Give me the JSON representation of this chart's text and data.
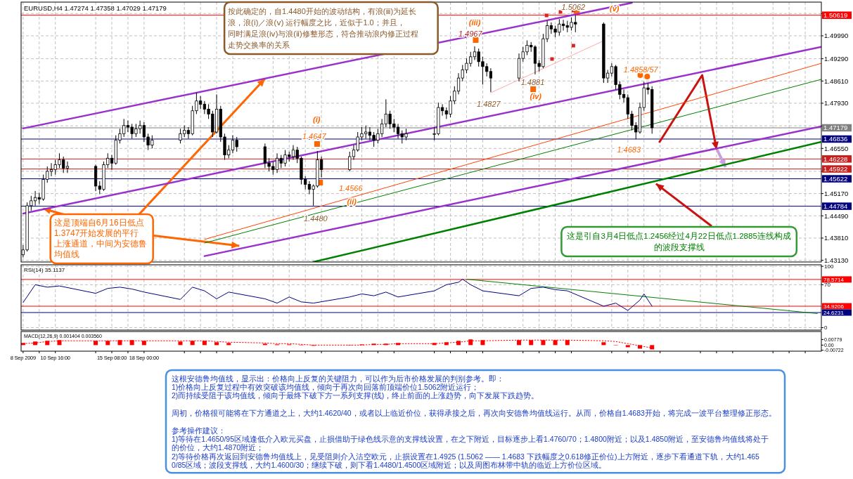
{
  "chart_data": [
    {
      "type": "candlestick",
      "title": "EURUSD,H4  1.47274 1.47358 1.47029 1.47179",
      "xlim": [
        "2009-09-07T20:00",
        "2009-11-13T00:00"
      ],
      "xticks": [
        {
          "value": "2009-09-08T00:00",
          "label": null
        },
        {
          "value": "2009-09-09T08:00",
          "label": null
        },
        {
          "value": "2009-09-10T16:00",
          "label": null
        },
        {
          "value": "2009-09-14T00:00",
          "label": null
        },
        {
          "value": "2009-09-15T08:00",
          "label": null
        },
        {
          "value": "2009-09-16T16:00",
          "label": null
        },
        {
          "value": "2009-09-18T00:00",
          "label": null
        },
        {
          "value": "2009-09-21T08:00",
          "label": null
        },
        {
          "value": "2009-09-22T16:00",
          "label": null
        },
        {
          "value": "2009-09-24T00:00",
          "label": null
        },
        {
          "value": "2009-09-25T08:00",
          "label": null
        },
        {
          "value": "2009-09-28T16:00",
          "label": null
        },
        {
          "value": "2009-09-30T00:00",
          "label": null
        },
        {
          "value": "2009-10-01T08:00",
          "label": null
        },
        {
          "value": "2009-10-02T16:00",
          "label": null
        },
        {
          "value": "2009-10-06T00:00",
          "label": null
        },
        {
          "value": "2009-10-07T08:00",
          "label": null
        },
        {
          "value": "2009-10-08T16:00",
          "label": null
        },
        {
          "value": "2009-10-12T00:00",
          "label": null
        },
        {
          "value": "2009-10-13T08:00",
          "label": null
        },
        {
          "value": "2009-10-14T16:00",
          "label": null
        },
        {
          "value": "2009-10-16T00:00",
          "label": null
        },
        {
          "value": "2009-10-19T08:00",
          "label": null
        },
        {
          "value": "2009-10-20T16:00",
          "label": null
        },
        {
          "value": "2009-10-22T00:00",
          "label": null
        },
        {
          "value": "2009-10-23T08:00",
          "label": null
        },
        {
          "value": "2009-10-26T16:00",
          "label": null
        },
        {
          "value": "2009-10-28T00:00",
          "label": null
        },
        {
          "value": "2009-10-29T08:00",
          "label": null
        },
        {
          "value": "2009-10-30T16:00",
          "label": null
        },
        {
          "value": "2009-11-03T00:00",
          "label": null
        },
        {
          "value": "2009-11-04T08:00",
          "label": null
        },
        {
          "value": "2009-11-05T16:00",
          "label": null
        },
        {
          "value": "2009-11-09T00:00",
          "label": null
        },
        {
          "value": "2009-11-10T08:00",
          "label": null
        },
        {
          "value": "2009-11-11T16:00",
          "label": null
        }
      ],
      "ylim": [
        1.4308,
        1.5102
      ],
      "yticks": [
        {
          "value": 1.4313,
          "label": "1.43130"
        },
        {
          "value": 1.4381,
          "label": "1.43810"
        },
        {
          "value": 1.4449,
          "label": "1.44490"
        },
        {
          "value": 1.4517,
          "label": "1.45170"
        },
        {
          "value": 1.4585,
          "label": null
        },
        {
          "value": 1.4655,
          "label": "1.46550"
        },
        {
          "value": 1.4724,
          "label": null
        },
        {
          "value": 1.4793,
          "label": "1.47930"
        },
        {
          "value": 1.4861,
          "label": "1.48610"
        },
        {
          "value": 1.4929,
          "label": "1.49290"
        },
        {
          "value": 1.4999,
          "label": "1.49990"
        },
        {
          "value": 1.5067,
          "label": null
        }
      ],
      "grid": true,
      "tick_labels": "y",
      "series": [
        {
          "color": "#000000",
          "x": [
            "2009-09-08T00:00",
            "2009-09-08T08:00",
            "2009-09-08T16:00",
            "2009-09-09T00:00",
            "2009-09-09T08:00",
            "2009-09-09T16:00",
            "2009-09-10T00:00",
            "2009-09-10T08:00",
            "2009-09-10T16:00",
            "2009-09-11T00:00",
            "2009-09-11T08:00",
            "2009-09-11T16:00",
            "2009-09-14T00:00",
            "2009-09-14T08:00",
            "2009-09-14T16:00",
            "2009-09-15T00:00",
            "2009-09-15T08:00",
            "2009-09-15T16:00",
            "2009-09-16T00:00",
            "2009-09-16T08:00",
            "2009-09-16T16:00",
            "2009-09-17T00:00",
            "2009-09-17T08:00",
            "2009-09-17T16:00",
            "2009-09-18T00:00",
            "2009-09-18T08:00",
            "2009-09-18T16:00",
            "2009-09-21T00:00",
            "2009-09-21T08:00",
            "2009-09-21T16:00",
            "2009-09-22T00:00",
            "2009-09-22T08:00",
            "2009-09-22T16:00",
            "2009-09-23T00:00",
            "2009-09-23T08:00",
            "2009-09-23T16:00",
            "2009-09-24T00:00",
            "2009-09-24T08:00",
            "2009-09-24T16:00",
            "2009-09-25T00:00",
            "2009-09-25T08:00",
            "2009-09-25T16:00",
            "2009-09-28T00:00",
            "2009-09-28T08:00",
            "2009-09-28T16:00",
            "2009-09-29T00:00",
            "2009-09-29T08:00",
            "2009-09-29T16:00",
            "2009-09-30T00:00",
            "2009-09-30T08:00",
            "2009-09-30T16:00",
            "2009-10-01T00:00",
            "2009-10-01T08:00",
            "2009-10-01T16:00",
            "2009-10-02T00:00",
            "2009-10-02T08:00",
            "2009-10-02T16:00",
            "2009-10-05T00:00",
            "2009-10-05T08:00",
            "2009-10-05T16:00",
            "2009-10-06T00:00",
            "2009-10-06T08:00",
            "2009-10-06T16:00",
            "2009-10-07T00:00",
            "2009-10-07T08:00",
            "2009-10-07T16:00",
            "2009-10-08T00:00",
            "2009-10-08T08:00",
            "2009-10-08T16:00",
            "2009-10-09T00:00",
            "2009-10-09T08:00",
            "2009-10-09T16:00",
            "2009-10-12T00:00",
            "2009-10-12T08:00",
            "2009-10-12T16:00",
            "2009-10-13T00:00",
            "2009-10-13T08:00",
            "2009-10-13T16:00",
            "2009-10-14T00:00",
            "2009-10-14T08:00",
            "2009-10-14T16:00",
            "2009-10-15T00:00",
            "2009-10-15T08:00",
            "2009-10-15T16:00",
            "2009-10-16T00:00",
            "2009-10-16T08:00",
            "2009-10-16T16:00",
            "2009-10-19T00:00",
            "2009-10-19T08:00",
            "2009-10-19T16:00",
            "2009-10-20T00:00",
            "2009-10-20T08:00",
            "2009-10-20T16:00",
            "2009-10-21T00:00",
            "2009-10-21T08:00",
            "2009-10-21T16:00",
            "2009-10-22T00:00",
            "2009-10-22T08:00",
            "2009-10-22T16:00",
            "2009-10-23T00:00",
            "2009-10-23T08:00",
            "2009-10-23T16:00",
            "2009-10-26T00:00",
            "2009-10-26T08:00",
            "2009-10-26T16:00",
            "2009-10-27T00:00",
            "2009-10-27T08:00",
            "2009-10-27T16:00",
            "2009-10-28T00:00",
            "2009-10-28T08:00",
            "2009-10-28T16:00",
            "2009-10-29T00:00",
            "2009-10-29T08:00",
            "2009-10-29T16:00",
            "2009-10-30T00:00"
          ],
          "ohlc": [
            [
              1.433,
              1.436,
              1.4322,
              1.4345
            ],
            [
              1.4345,
              1.449,
              1.434,
              1.448
            ],
            [
              1.448,
              1.451,
              1.4465,
              1.4495
            ],
            [
              1.4495,
              1.4525,
              1.448,
              1.4505
            ],
            [
              1.4505,
              1.452,
              1.4485,
              1.45
            ],
            [
              1.45,
              1.4575,
              1.4495,
              1.456
            ],
            [
              1.456,
              1.46,
              1.455,
              1.4585
            ],
            [
              1.4585,
              1.461,
              1.457,
              1.459
            ],
            [
              1.459,
              1.462,
              1.4575,
              1.4605
            ],
            [
              1.4605,
              1.464,
              1.4595,
              1.462
            ],
            [
              1.462,
              1.463,
              1.458,
              1.4595
            ],
            [
              1.4595,
              1.4615,
              1.458,
              1.46
            ],
            [
              1.46,
              1.4605,
              1.4525,
              1.454
            ],
            [
              1.454,
              1.4555,
              1.4515,
              1.453
            ],
            [
              1.453,
              1.4615,
              1.4525,
              1.4605
            ],
            [
              1.4605,
              1.464,
              1.4595,
              1.4625
            ],
            [
              1.4625,
              1.4635,
              1.459,
              1.461
            ],
            [
              1.461,
              1.4695,
              1.4605,
              1.468
            ],
            [
              1.468,
              1.4715,
              1.467,
              1.47
            ],
            [
              1.47,
              1.4745,
              1.469,
              1.4725
            ],
            [
              1.4725,
              1.474,
              1.4705,
              1.472
            ],
            [
              1.472,
              1.473,
              1.4685,
              1.47
            ],
            [
              1.47,
              1.473,
              1.469,
              1.4715
            ],
            [
              1.4715,
              1.474,
              1.47,
              1.4725
            ],
            [
              1.4725,
              1.4735,
              1.4675,
              1.469
            ],
            [
              1.469,
              1.47,
              1.465,
              1.4665
            ],
            [
              1.4665,
              1.4695,
              1.4655,
              1.468
            ],
            [
              1.468,
              1.4715,
              1.467,
              1.47
            ],
            [
              1.47,
              1.4725,
              1.469,
              1.471
            ],
            [
              1.471,
              1.472,
              1.4685,
              1.47
            ],
            [
              1.47,
              1.4785,
              1.4695,
              1.477
            ],
            [
              1.477,
              1.4825,
              1.476,
              1.48
            ],
            [
              1.48,
              1.4815,
              1.4775,
              1.479
            ],
            [
              1.479,
              1.48,
              1.476,
              1.4775
            ],
            [
              1.4775,
              1.479,
              1.4745,
              1.476
            ],
            [
              1.476,
              1.477,
              1.469,
              1.4705
            ],
            [
              1.4705,
              1.482,
              1.47,
              1.4775
            ],
            [
              1.4775,
              1.4785,
              1.4675,
              1.469
            ],
            [
              1.469,
              1.47,
              1.462,
              1.4635
            ],
            [
              1.4635,
              1.4665,
              1.4625,
              1.465
            ],
            [
              1.465,
              1.4695,
              1.464,
              1.468
            ],
            [
              1.468,
              1.469,
              1.4645,
              1.466
            ],
            [
              1.466,
              1.467,
              1.4595,
              1.461
            ],
            [
              1.461,
              1.4625,
              1.4585,
              1.46
            ],
            [
              1.46,
              1.4615,
              1.4575,
              1.459
            ],
            [
              1.459,
              1.464,
              1.458,
              1.4625
            ],
            [
              1.4625,
              1.4635,
              1.4595,
              1.461
            ],
            [
              1.461,
              1.465,
              1.46,
              1.4635
            ],
            [
              1.4635,
              1.4645,
              1.4615,
              1.463
            ],
            [
              1.463,
              1.4665,
              1.462,
              1.465
            ],
            [
              1.465,
              1.466,
              1.461,
              1.4625
            ],
            [
              1.4625,
              1.463,
              1.4545,
              1.456
            ],
            [
              1.456,
              1.457,
              1.453,
              1.4545
            ],
            [
              1.4545,
              1.4555,
              1.4515,
              1.453
            ],
            [
              1.453,
              1.4545,
              1.448,
              1.454
            ],
            [
              1.454,
              1.4647,
              1.4535,
              1.462
            ],
            [
              1.462,
              1.463,
              1.4566,
              1.459
            ],
            [
              1.459,
              1.4645,
              1.4585,
              1.463
            ],
            [
              1.463,
              1.4665,
              1.462,
              1.465
            ],
            [
              1.465,
              1.4705,
              1.4645,
              1.469
            ],
            [
              1.469,
              1.472,
              1.468,
              1.47
            ],
            [
              1.47,
              1.4725,
              1.4685,
              1.4705
            ],
            [
              1.4705,
              1.472,
              1.468,
              1.4695
            ],
            [
              1.4695,
              1.4705,
              1.466,
              1.468
            ],
            [
              1.468,
              1.4715,
              1.467,
              1.47
            ],
            [
              1.47,
              1.4745,
              1.469,
              1.473
            ],
            [
              1.473,
              1.4805,
              1.472,
              1.476
            ],
            [
              1.476,
              1.477,
              1.4715,
              1.473
            ],
            [
              1.473,
              1.4745,
              1.4705,
              1.472
            ],
            [
              1.472,
              1.473,
              1.4685,
              1.47
            ],
            [
              1.47,
              1.471,
              1.467,
              1.469
            ],
            [
              1.469,
              1.4715,
              1.468,
              1.47
            ],
            [
              1.47,
              1.472,
              1.468,
              1.47
            ],
            [
              1.47,
              1.4795,
              1.4695,
              1.478
            ],
            [
              1.478,
              1.479,
              1.4755,
              1.477
            ],
            [
              1.477,
              1.478,
              1.4745,
              1.476
            ],
            [
              1.476,
              1.4815,
              1.475,
              1.48
            ],
            [
              1.48,
              1.4845,
              1.479,
              1.483
            ],
            [
              1.483,
              1.4885,
              1.482,
              1.487
            ],
            [
              1.487,
              1.491,
              1.486,
              1.4895
            ],
            [
              1.4895,
              1.493,
              1.4885,
              1.4915
            ],
            [
              1.4915,
              1.495,
              1.4905,
              1.4935
            ],
            [
              1.4935,
              1.4967,
              1.4925,
              1.495
            ],
            [
              1.495,
              1.496,
              1.4905,
              1.492
            ],
            [
              1.492,
              1.4935,
              1.485,
              1.4905
            ],
            [
              1.4905,
              1.4915,
              1.4875,
              1.489
            ],
            [
              1.489,
              1.49,
              1.4827,
              1.487
            ],
            [
              1.487,
              1.4945,
              1.486,
              1.493
            ],
            [
              1.493,
              1.4965,
              1.492,
              1.495
            ],
            [
              1.495,
              1.4985,
              1.494,
              1.497
            ],
            [
              1.497,
              1.498,
              1.495,
              1.4965
            ],
            [
              1.4965,
              1.497,
              1.4881,
              1.4915
            ],
            [
              1.4915,
              1.4925,
              1.489,
              1.4905
            ],
            [
              1.4905,
              1.5005,
              1.49,
              1.499
            ],
            [
              1.499,
              1.5045,
              1.498,
              1.503
            ],
            [
              1.503,
              1.504,
              1.5005,
              1.502
            ],
            [
              1.502,
              1.503,
              1.4995,
              1.501
            ],
            [
              1.501,
              1.505,
              1.5,
              1.5035
            ],
            [
              1.5035,
              1.5048,
              1.5015,
              1.503
            ],
            [
              1.503,
              1.5045,
              1.501,
              1.5025
            ],
            [
              1.5025,
              1.5055,
              1.5015,
              1.504
            ],
            [
              1.504,
              1.5062,
              1.501,
              1.5035
            ],
            [
              1.5035,
              1.504,
              1.4855,
              1.487
            ],
            [
              1.487,
              1.4895,
              1.4855,
              1.4885
            ],
            [
              1.4885,
              1.4915,
              1.4875,
              1.4905
            ],
            [
              1.4905,
              1.491,
              1.4835,
              1.485
            ],
            [
              1.485,
              1.486,
              1.4805,
              1.482
            ],
            [
              1.482,
              1.4835,
              1.4795,
              1.481
            ],
            [
              1.481,
              1.482,
              1.4745,
              1.476
            ],
            [
              1.476,
              1.477,
              1.471,
              1.4725
            ],
            [
              1.4725,
              1.4735,
              1.4683,
              1.4705
            ],
            [
              1.4705,
              1.4795,
              1.47,
              1.478
            ],
            [
              1.478,
              1.4858,
              1.477,
              1.484
            ],
            [
              1.484,
              1.4855,
              1.482,
              1.4835
            ],
            [
              1.4835,
              1.4845,
              1.47,
              1.4718
            ]
          ]
        },
        {
          "type": "line",
          "color": "#9932cc",
          "x": [
            "2009-09-08T00:00",
            "2009-10-28T08:00"
          ],
          "values": [
            1.4716,
            1.51
          ]
        },
        {
          "type": "line",
          "color": "#9932cc",
          "x": [
            "2009-09-08T00:00",
            "2009-11-13T00:00"
          ],
          "values": [
            1.4456,
            1.4965
          ]
        },
        {
          "type": "line",
          "color": "#9932cc",
          "x": [
            "2009-09-23T00:00",
            "2009-11-13T00:00"
          ],
          "values": [
            1.4326,
            1.4722
          ]
        },
        {
          "type": "line",
          "color": "#ff4500",
          "x": [
            "2009-09-23T00:00",
            "2009-11-13T00:00"
          ],
          "values": [
            1.4377,
            1.4915
          ]
        },
        {
          "type": "line",
          "color": "#008000",
          "x": [
            "2009-09-23T00:00",
            "2009-11-13T00:00"
          ],
          "values": [
            1.4366,
            1.4866
          ]
        },
        {
          "type": "line",
          "color": "#008000",
          "x": [
            "2009-10-02T00:00",
            "2009-11-13T00:00"
          ],
          "values": [
            1.4308,
            1.4675
          ]
        },
        {
          "type": "line",
          "color": "#ffaaaa",
          "x": [
            "2009-10-16T16:00",
            "2009-10-26T00:00"
          ],
          "values": [
            1.4825,
            1.4984
          ]
        }
      ],
      "ref_lines": [
        {
          "axis": "y",
          "value": 1.50619,
          "label": "1.50619",
          "color": "#ff0000"
        },
        {
          "axis": "y",
          "value": 1.47179,
          "label": "1.47179",
          "color": "#808080"
        },
        {
          "axis": "y",
          "value": 1.46836,
          "label": "1.46836",
          "color": "#000080"
        },
        {
          "axis": "y",
          "value": 1.46228,
          "label": "1.46228",
          "color": "#c81e1e"
        },
        {
          "axis": "y",
          "value": 1.45922,
          "label": "1.45922",
          "color": "#c81e1e"
        },
        {
          "axis": "y",
          "value": 1.45622,
          "label": "1.45622",
          "color": "#000080"
        },
        {
          "axis": "y",
          "value": 1.44784,
          "label": "1.44784",
          "color": "#000080"
        }
      ],
      "annotations": [
        "(i)",
        "1.4647",
        "1.4566",
        "(ii)",
        "1.4480",
        "(iii)",
        "1.4967",
        "1.4881",
        "(iv)",
        "1.4827",
        "1.5062",
        "(v)",
        "1.4858/57",
        "1.4683",
        "按此确定的，自1.4480开始的波动结构，有浪(ⅲ)为延长浪，浪(ⅰ)／浪(ⅴ) 运行幅度之比，近似于1.0；并且，同时满足浪(ⅳ)与浪(ⅱ)修整形态，符合推动浪内修正过程走势交换率的关系",
        {
          "text": "这是顶端自6月16日低点1.3747开始发展的平行上涨通道，中间为安德鲁均值线",
          "x": "2009-09-28T00:00",
          "y": 1.4868
        },
        {
          "text": "这是引自3月4日低点1.2456经过4月22日低点1.2885连线构成的波段支撑线",
          "x": "2009-10-30T08:00",
          "y": 1.4547
        },
        "这根安德鲁均值线，显示出：价格向上反复的关键阻力，可以作为后市价格发展的判别参考。即：",
        "1)价格向上反复过程中有效突破该均值线，倾向于再次向回落前顶端价位1.5062附近运行；",
        "2)而持续受阻于该均值线，倾向于最终下破下方一系列支撑(线)，终止前面的上涨趋势，向下发展下跌趋势。",
        "周初，价格很可能将在下方通道之上，大约1.4620/40，或者以上临近价位，获得承接之后，再次向安德鲁均值线运行。从而，价格自1.4683开始，将完成一波平台整理修正形态。",
        "参考操作建议：",
        "1)等待在1.4650/95区域逢低介入欧元买盘，止损借助于绿色线示意的支撑线设置，在之下附近，目标逐步上看1.4760/70；1.4800附近；以及1.4850附近，至安德鲁均值线将处于的价位，大约1.4870附近；",
        "2)等待价格再次返回到安德鲁均值线上，见受阻则介入沽空欧元，止损设置在1.4925 (1.5062 —— 1.4683 下跌幅度之0.618修正价位)上方附近，逐步下看通道下轨，大约1.4650/85区域；波段支撑线，大约1.4600/30；继续下破，则下看1.4480/1.4500区域附近；以及周图布林带中轨的临近上方价位区域。"
      ]
    },
    {
      "type": "line",
      "title": "RSI(14) 35.1137",
      "xlim": [
        "2009-09-07T20:00",
        "2009-11-13T00:00"
      ],
      "xticks": [
        {
          "value": "2009-09-08T00:00",
          "label": null
        },
        {
          "value": "2009-09-09T08:00",
          "label": null
        },
        {
          "value": "2009-09-10T16:00",
          "label": null
        },
        {
          "value": "2009-09-14T00:00",
          "label": null
        },
        {
          "value": "2009-09-15T08:00",
          "label": null
        },
        {
          "value": "2009-09-16T16:00",
          "label": null
        },
        {
          "value": "2009-09-18T00:00",
          "label": null
        },
        {
          "value": "2009-09-21T08:00",
          "label": null
        },
        {
          "value": "2009-09-22T16:00",
          "label": null
        },
        {
          "value": "2009-09-24T00:00",
          "label": null
        },
        {
          "value": "2009-09-25T08:00",
          "label": null
        },
        {
          "value": "2009-09-28T16:00",
          "label": null
        },
        {
          "value": "2009-09-30T00:00",
          "label": null
        },
        {
          "value": "2009-10-01T08:00",
          "label": null
        },
        {
          "value": "2009-10-02T16:00",
          "label": null
        },
        {
          "value": "2009-10-06T00:00",
          "label": null
        },
        {
          "value": "2009-10-07T08:00",
          "label": null
        },
        {
          "value": "2009-10-08T16:00",
          "label": null
        },
        {
          "value": "2009-10-12T00:00",
          "label": null
        },
        {
          "value": "2009-10-13T08:00",
          "label": null
        },
        {
          "value": "2009-10-14T16:00",
          "label": null
        },
        {
          "value": "2009-10-16T00:00",
          "label": null
        },
        {
          "value": "2009-10-19T08:00",
          "label": null
        },
        {
          "value": "2009-10-20T16:00",
          "label": null
        },
        {
          "value": "2009-10-22T00:00",
          "label": null
        },
        {
          "value": "2009-10-23T08:00",
          "label": null
        },
        {
          "value": "2009-10-26T16:00",
          "label": null
        },
        {
          "value": "2009-10-28T00:00",
          "label": null
        },
        {
          "value": "2009-10-29T08:00",
          "label": null
        },
        {
          "value": "2009-10-30T16:00",
          "label": null
        },
        {
          "value": "2009-11-03T00:00",
          "label": null
        },
        {
          "value": "2009-11-04T08:00",
          "label": null
        },
        {
          "value": "2009-11-05T16:00",
          "label": null
        },
        {
          "value": "2009-11-09T00:00",
          "label": null
        },
        {
          "value": "2009-11-10T08:00",
          "label": null
        },
        {
          "value": "2009-11-11T16:00",
          "label": null
        }
      ],
      "ylim": [
        -4,
        102.5
      ],
      "yticks": [
        0,
        70,
        100
      ],
      "grid": true,
      "tick_labels": "y",
      "series": [
        {
          "color": "#000080",
          "x": [
            "2009-09-08T00:00",
            "2009-09-09T00:00",
            "2009-09-10T00:00",
            "2009-09-11T00:00",
            "2009-09-14T00:00",
            "2009-09-15T00:00",
            "2009-09-16T00:00",
            "2009-09-17T00:00",
            "2009-09-18T00:00",
            "2009-09-21T00:00",
            "2009-09-22T00:00",
            "2009-09-23T00:00",
            "2009-09-24T00:00",
            "2009-09-25T00:00",
            "2009-09-28T00:00",
            "2009-09-29T00:00",
            "2009-09-30T00:00",
            "2009-10-01T00:00",
            "2009-10-02T00:00",
            "2009-10-05T00:00",
            "2009-10-06T00:00",
            "2009-10-07T00:00",
            "2009-10-08T00:00",
            "2009-10-09T00:00",
            "2009-10-12T00:00",
            "2009-10-13T00:00",
            "2009-10-14T00:00",
            "2009-10-14T08:00",
            "2009-10-15T00:00",
            "2009-10-16T00:00",
            "2009-10-19T00:00",
            "2009-10-20T00:00",
            "2009-10-21T00:00",
            "2009-10-22T00:00",
            "2009-10-23T00:00",
            "2009-10-26T00:00",
            "2009-10-27T00:00",
            "2009-10-28T00:00",
            "2009-10-29T00:00",
            "2009-10-29T08:00",
            "2009-10-30T00:00"
          ],
          "values": [
            41,
            70,
            66,
            68,
            56,
            64,
            66,
            63,
            58,
            46,
            66,
            60,
            47,
            58,
            47,
            40,
            50,
            42,
            40,
            50,
            55,
            52,
            58,
            50,
            60,
            70,
            74,
            79,
            70,
            60,
            52,
            64,
            66,
            62,
            60,
            35,
            40,
            28,
            45,
            55,
            35
          ]
        },
        {
          "type": "line",
          "color": "#008000",
          "x": [
            "2009-10-14T16:00",
            "2009-11-12T16:00"
          ],
          "values": [
            79,
            23
          ]
        }
      ],
      "ref_lines": [
        {
          "axis": "y",
          "value": 78.5714,
          "label": "78.5714",
          "color": "#ff0000"
        },
        {
          "axis": "y",
          "value": 34.9206,
          "label": "34.9206",
          "color": "#ff0000"
        },
        {
          "axis": "y",
          "value": 24.6231,
          "label": "24.6231",
          "color": "#000080"
        }
      ]
    },
    {
      "type": "bar",
      "title": "MACD(12,26,9) 0.001404 0.003560",
      "xlim": [
        "2009-09-07T20:00",
        "2009-11-13T00:00"
      ],
      "xticks": [
        {
          "value": "2009-09-08T00:00",
          "label": "8 Sep 2009"
        },
        {
          "value": "2009-09-09T08:00",
          "label": null
        },
        {
          "value": "2009-09-10T16:00",
          "label": "10 Sep 16:00"
        },
        {
          "value": "2009-09-14T00:00",
          "label": null
        },
        {
          "value": "2009-09-15T08:00",
          "label": "15 Sep 08:00"
        },
        {
          "value": "2009-09-16T16:00",
          "label": null
        },
        {
          "value": "2009-09-18T00:00",
          "label": "18 Sep 00:00"
        },
        {
          "value": "2009-09-21T08:00",
          "label": null
        },
        {
          "value": "2009-09-22T16:00",
          "label": null
        },
        {
          "value": "2009-09-24T00:00",
          "label": null
        },
        {
          "value": "2009-09-25T08:00",
          "label": null
        },
        {
          "value": "2009-09-28T16:00",
          "label": null
        },
        {
          "value": "2009-09-30T00:00",
          "label": null
        },
        {
          "value": "2009-10-01T08:00",
          "label": null
        },
        {
          "value": "2009-10-02T16:00",
          "label": null
        },
        {
          "value": "2009-10-06T00:00",
          "label": null
        },
        {
          "value": "2009-10-07T08:00",
          "label": null
        },
        {
          "value": "2009-10-08T16:00",
          "label": null
        },
        {
          "value": "2009-10-12T00:00",
          "label": null
        },
        {
          "value": "2009-10-13T08:00",
          "label": null
        },
        {
          "value": "2009-10-14T16:00",
          "label": null
        },
        {
          "value": "2009-10-16T00:00",
          "label": null
        },
        {
          "value": "2009-10-19T08:00",
          "label": null
        },
        {
          "value": "2009-10-20T16:00",
          "label": null
        },
        {
          "value": "2009-10-22T00:00",
          "label": null
        },
        {
          "value": "2009-10-23T08:00",
          "label": null
        },
        {
          "value": "2009-10-26T16:00",
          "label": null
        },
        {
          "value": "2009-10-28T00:00",
          "label": null
        },
        {
          "value": "2009-10-29T08:00",
          "label": null
        },
        {
          "value": "2009-10-30T16:00",
          "label": null
        },
        {
          "value": "2009-11-03T00:00",
          "label": null
        },
        {
          "value": "2009-11-04T08:00",
          "label": null
        },
        {
          "value": "2009-11-05T16:00",
          "label": null
        },
        {
          "value": "2009-11-09T00:00",
          "label": null
        },
        {
          "value": "2009-11-10T08:00",
          "label": null
        },
        {
          "value": "2009-11-11T16:00",
          "label": null
        }
      ],
      "ylim": [
        -0.0085,
        0.019
      ],
      "yticks": [
        -0.00722,
        {
          "value": 0,
          "label": "0.00"
        },
        0.00779
      ],
      "series": [
        {
          "color": "#ff0000",
          "x": [
            "2009-09-08T00:00",
            "2009-09-09T00:00",
            "2009-09-10T00:00",
            "2009-09-11T00:00",
            "2009-09-14T00:00",
            "2009-09-15T00:00",
            "2009-09-16T00:00",
            "2009-09-17T00:00",
            "2009-09-18T00:00",
            "2009-09-21T00:00",
            "2009-09-22T00:00",
            "2009-09-23T00:00",
            "2009-09-24T00:00",
            "2009-09-25T00:00",
            "2009-09-28T00:00",
            "2009-09-29T00:00",
            "2009-09-30T00:00",
            "2009-10-01T00:00",
            "2009-10-02T00:00",
            "2009-10-05T00:00",
            "2009-10-06T00:00",
            "2009-10-07T00:00",
            "2009-10-08T00:00",
            "2009-10-09T00:00",
            "2009-10-12T00:00",
            "2009-10-13T00:00",
            "2009-10-14T00:00",
            "2009-10-15T00:00",
            "2009-10-16T00:00",
            "2009-10-19T00:00",
            "2009-10-20T00:00",
            "2009-10-21T00:00",
            "2009-10-22T00:00",
            "2009-10-23T00:00",
            "2009-10-26T00:00",
            "2009-10-27T00:00",
            "2009-10-28T00:00",
            "2009-10-29T00:00",
            "2009-10-30T00:00"
          ],
          "values": [
            0.003,
            0.005,
            0.006,
            0.007,
            0.006,
            0.006,
            0.007,
            0.007,
            0.006,
            0.005,
            0.006,
            0.006,
            0.004,
            0.003,
            0.002,
            0.001,
            0.001,
            0,
            -0.001,
            0,
            0.001,
            0.002,
            0.002,
            0.003,
            0.003,
            0.004,
            0.006,
            0.008,
            0.007,
            0.007,
            0.007,
            0.007,
            0.007,
            0.007,
            0.004,
            0,
            -0.003,
            -0.005,
            -0.006
          ]
        },
        {
          "type": "line",
          "color": "#ff0000",
          "line_style": "dotted",
          "x": [
            "2009-09-08T00:00",
            "2009-09-09T00:00",
            "2009-09-10T00:00",
            "2009-09-11T00:00",
            "2009-09-14T00:00",
            "2009-09-15T00:00",
            "2009-09-16T00:00",
            "2009-09-17T00:00",
            "2009-09-18T00:00",
            "2009-09-21T00:00",
            "2009-09-22T00:00",
            "2009-09-23T00:00",
            "2009-09-24T00:00",
            "2009-09-25T00:00",
            "2009-09-28T00:00",
            "2009-09-29T00:00",
            "2009-09-30T00:00",
            "2009-10-01T00:00",
            "2009-10-02T00:00",
            "2009-10-05T00:00",
            "2009-10-06T00:00",
            "2009-10-07T00:00",
            "2009-10-08T00:00",
            "2009-10-09T00:00",
            "2009-10-12T00:00",
            "2009-10-13T00:00",
            "2009-10-14T00:00",
            "2009-10-15T00:00",
            "2009-10-16T00:00",
            "2009-10-19T00:00",
            "2009-10-20T00:00",
            "2009-10-21T00:00",
            "2009-10-22T00:00",
            "2009-10-23T00:00",
            "2009-10-26T00:00",
            "2009-10-27T00:00",
            "2009-10-28T00:00",
            "2009-10-29T00:00",
            "2009-10-30T00:00"
          ],
          "values": [
            0.002,
            0.003,
            0.005,
            0.006,
            0.006,
            0.006,
            0.006,
            0.006,
            0.006,
            0.006,
            0.006,
            0.006,
            0.005,
            0.004,
            0.003,
            0.002,
            0.002,
            0.001,
            0,
            0,
            0,
            0.001,
            0.001,
            0.002,
            0.002,
            0.003,
            0.004,
            0.006,
            0.006,
            0.007,
            0.007,
            0.007,
            0.007,
            0.007,
            0.006,
            0.005,
            0.002,
            -0.001,
            -0.004
          ]
        }
      ]
    }
  ]
}
